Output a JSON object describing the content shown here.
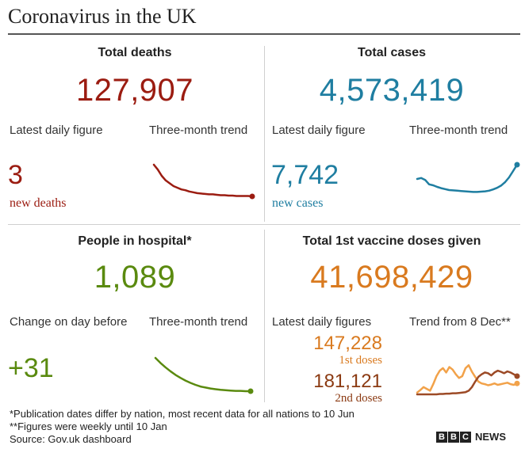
{
  "title": "Coronavirus in the UK",
  "colors": {
    "deaths": "#9b1c11",
    "cases": "#1f7ea1",
    "hospital": "#5a8a0f",
    "vaccine": "#d97a1f",
    "first_dose": "#d97a1f",
    "second_dose": "#8b3a12",
    "first_dose_line": "#f2a24a",
    "second_dose_line": "#9c4a26"
  },
  "panels": {
    "deaths": {
      "heading": "Total deaths",
      "total": "127,907",
      "left_label": "Latest daily figure",
      "right_label": "Three-month trend",
      "figure": "3",
      "figure_label": "new deaths"
    },
    "cases": {
      "heading": "Total cases",
      "total": "4,573,419",
      "left_label": "Latest daily figure",
      "right_label": "Three-month trend",
      "figure": "7,742",
      "figure_label": "new cases"
    },
    "hospital": {
      "heading": "People in hospital*",
      "total": "1,089",
      "left_label": "Change on day before",
      "right_label": "Three-month trend",
      "figure": "+31"
    },
    "vaccine": {
      "heading": "Total 1st vaccine doses given",
      "total": "41,698,429",
      "left_label": "Latest daily figures",
      "right_label": "Trend from 8 Dec**",
      "first_value": "147,228",
      "first_label": "1st doses",
      "second_value": "181,121",
      "second_label": "2nd doses"
    }
  },
  "footnotes": {
    "line1": "*Publication dates differ by nation, most recent data for all nations to 10 Jun",
    "line2": "**Figures were weekly until 10 Jan",
    "source": "Source: Gov.uk dashboard"
  },
  "logo": {
    "letters": [
      "B",
      "B",
      "C"
    ],
    "word": "NEWS"
  },
  "chart_data": [
    {
      "type": "line",
      "title": "Deaths three-month trend",
      "series": [
        {
          "name": "new deaths",
          "values": [
            100,
            88,
            73,
            62,
            55,
            48,
            44,
            40,
            38,
            35,
            33,
            31,
            30,
            29,
            28,
            28,
            27,
            26,
            26,
            25,
            25,
            24,
            24,
            24,
            24,
            23
          ]
        }
      ],
      "ylim": [
        0,
        100
      ]
    },
    {
      "type": "line",
      "title": "Cases three-month trend",
      "series": [
        {
          "name": "new cases",
          "values": [
            55,
            58,
            52,
            38,
            35,
            30,
            26,
            23,
            20,
            19,
            18,
            17,
            16,
            15,
            14,
            14,
            15,
            16,
            18,
            22,
            27,
            34,
            45,
            60,
            80,
            100
          ]
        }
      ],
      "ylim": [
        0,
        100
      ]
    },
    {
      "type": "line",
      "title": "Hospital three-month trend",
      "series": [
        {
          "name": "people in hospital",
          "values": [
            100,
            85,
            72,
            60,
            49,
            40,
            32,
            25,
            19,
            14,
            11,
            8,
            6,
            4,
            3,
            2,
            1,
            1,
            0,
            0
          ]
        }
      ],
      "ylim": [
        0,
        100
      ]
    },
    {
      "type": "line",
      "title": "Vaccine doses trend from 8 Dec",
      "series": [
        {
          "name": "1st doses",
          "values": [
            5,
            12,
            20,
            15,
            10,
            28,
            50,
            65,
            72,
            60,
            75,
            68,
            55,
            45,
            50,
            72,
            80,
            62,
            48,
            35,
            30,
            28,
            25,
            27,
            30,
            26,
            28,
            30,
            32,
            28,
            26,
            30
          ]
        },
        {
          "name": "2nd doses",
          "values": [
            0,
            0,
            0,
            0,
            0,
            0,
            0,
            1,
            1,
            2,
            2,
            3,
            3,
            4,
            5,
            6,
            10,
            20,
            35,
            48,
            55,
            60,
            58,
            52,
            60,
            65,
            62,
            58,
            63,
            60,
            55,
            50
          ]
        }
      ],
      "ylim": [
        0,
        100
      ]
    }
  ]
}
